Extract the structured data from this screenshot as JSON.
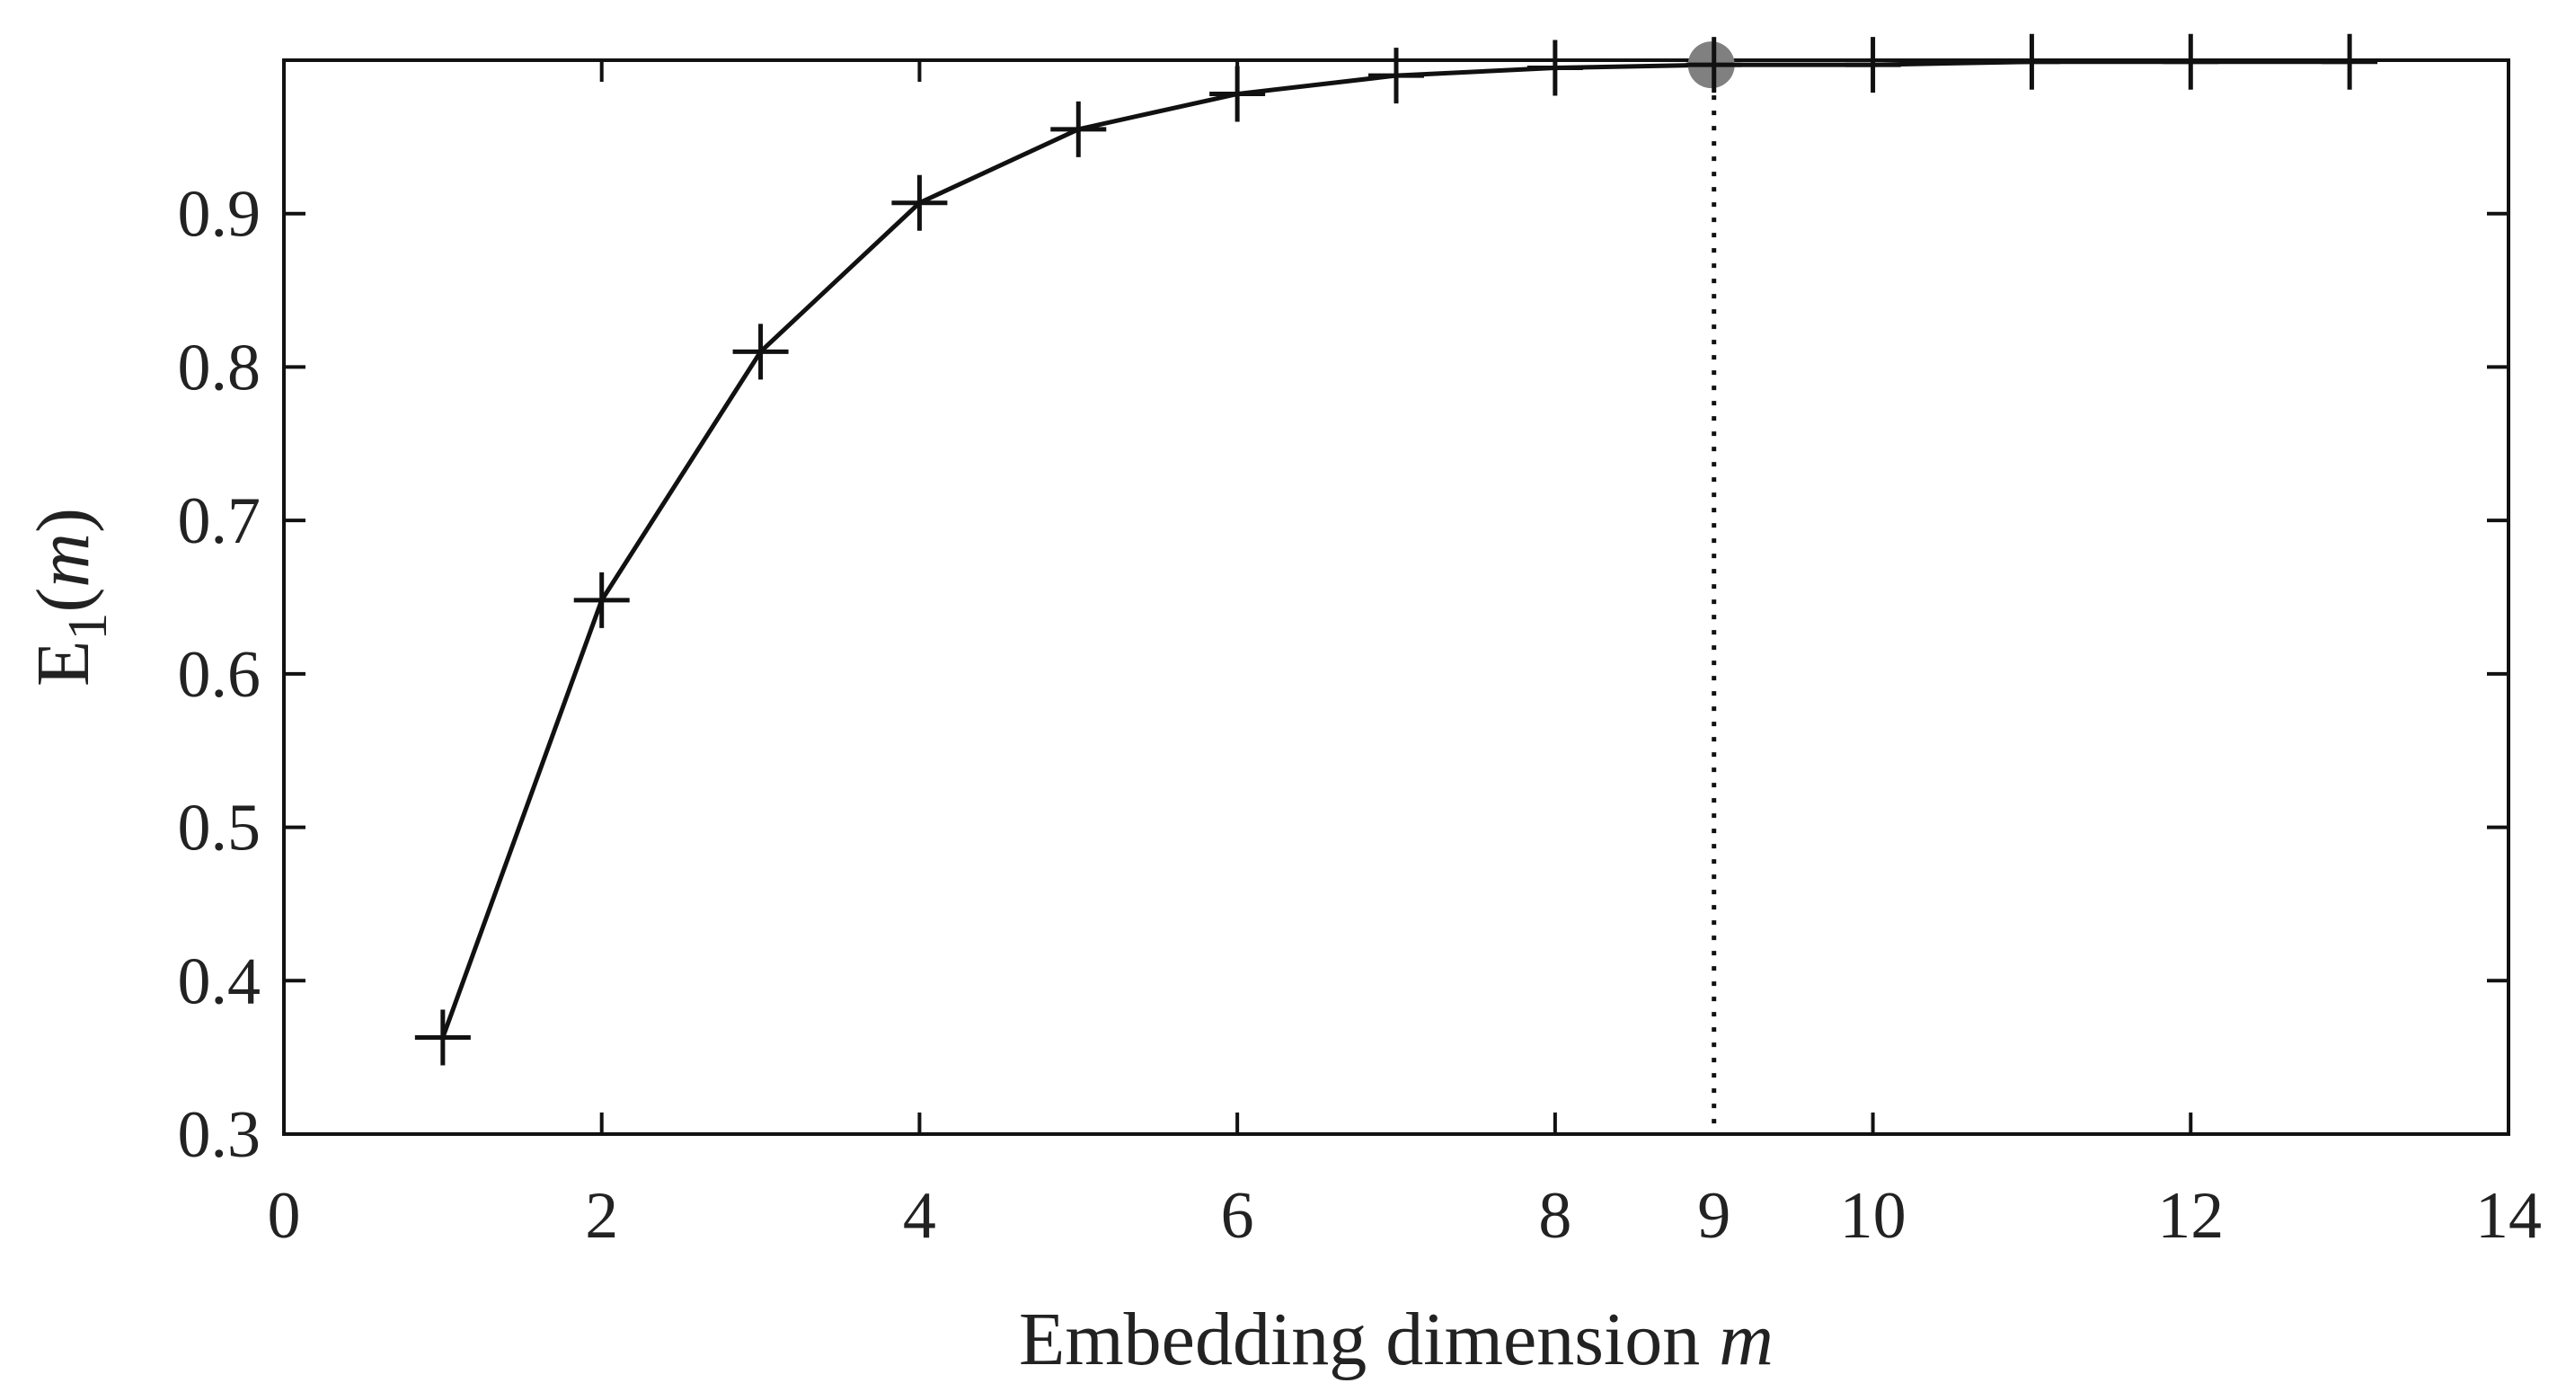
{
  "chart_data": {
    "type": "line",
    "title": "",
    "xlabel": {
      "text": "Embedding dimension ",
      "var": "m"
    },
    "ylabel": {
      "main": "E",
      "sub": "1",
      "open": "(",
      "var": "m",
      "close": ")"
    },
    "xlim": [
      0,
      14
    ],
    "ylim": [
      0.3,
      1.0
    ],
    "xticks": [
      0,
      2,
      4,
      6,
      8,
      10,
      12,
      14
    ],
    "xtick_labels": [
      "0",
      "2",
      "4",
      "6",
      "8",
      "10",
      "12",
      "14"
    ],
    "yticks": [
      0.3,
      0.4,
      0.5,
      0.6,
      0.7,
      0.8,
      0.9
    ],
    "ytick_labels": [
      "0.3",
      "0.4",
      "0.5",
      "0.6",
      "0.7",
      "0.8",
      "0.9"
    ],
    "grid": false,
    "series": [
      {
        "name": "E1(m)",
        "marker": "+",
        "color": "#111111",
        "x": [
          1,
          2,
          3,
          4,
          5,
          6,
          7,
          8,
          9,
          10,
          11,
          12,
          13
        ],
        "values": [
          0.363,
          0.648,
          0.81,
          0.907,
          0.955,
          0.978,
          0.99,
          0.995,
          0.997,
          0.997,
          0.999,
          0.999,
          0.999
        ]
      }
    ],
    "highlight": {
      "x": 9,
      "y": 0.997,
      "label": "9",
      "marker_color": "#808080",
      "line_style": "dotted"
    }
  }
}
